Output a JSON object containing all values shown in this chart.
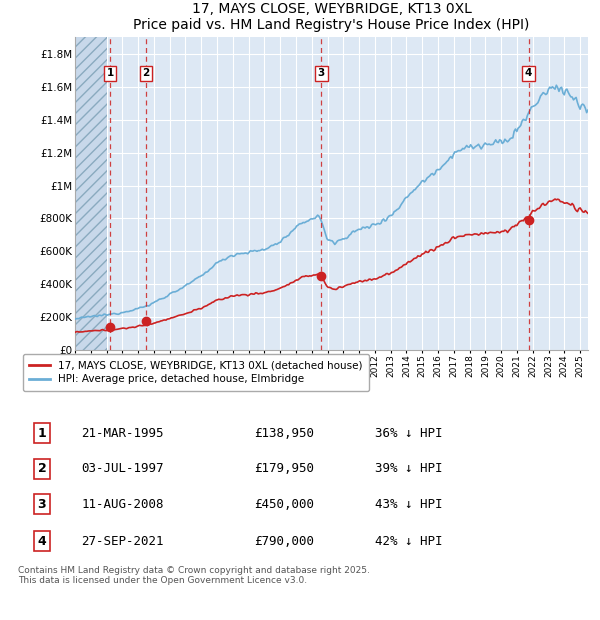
{
  "title": "17, MAYS CLOSE, WEYBRIDGE, KT13 0XL",
  "subtitle": "Price paid vs. HM Land Registry's House Price Index (HPI)",
  "ylim": [
    0,
    1900000
  ],
  "yticks": [
    0,
    200000,
    400000,
    600000,
    800000,
    1000000,
    1200000,
    1400000,
    1600000,
    1800000
  ],
  "ytick_labels": [
    "£0",
    "£200K",
    "£400K",
    "£600K",
    "£800K",
    "£1M",
    "£1.2M",
    "£1.4M",
    "£1.6M",
    "£1.8M"
  ],
  "xlim_start": 1993.0,
  "xlim_end": 2025.5,
  "hpi_color": "#6baed6",
  "price_color": "#cc2222",
  "sale_dates": [
    1995.22,
    1997.5,
    2008.61,
    2021.74
  ],
  "sale_prices": [
    138950,
    179950,
    450000,
    790000
  ],
  "sale_labels": [
    "1",
    "2",
    "3",
    "4"
  ],
  "vline_color": "#cc2222",
  "background_color": "#dde8f4",
  "legend_price_label": "17, MAYS CLOSE, WEYBRIDGE, KT13 0XL (detached house)",
  "legend_hpi_label": "HPI: Average price, detached house, Elmbridge",
  "table_rows": [
    [
      "1",
      "21-MAR-1995",
      "£138,950",
      "36% ↓ HPI"
    ],
    [
      "2",
      "03-JUL-1997",
      "£179,950",
      "39% ↓ HPI"
    ],
    [
      "3",
      "11-AUG-2008",
      "£450,000",
      "43% ↓ HPI"
    ],
    [
      "4",
      "27-SEP-2021",
      "£790,000",
      "42% ↓ HPI"
    ]
  ],
  "footer": "Contains HM Land Registry data © Crown copyright and database right 2025.\nThis data is licensed under the Open Government Licence v3.0."
}
